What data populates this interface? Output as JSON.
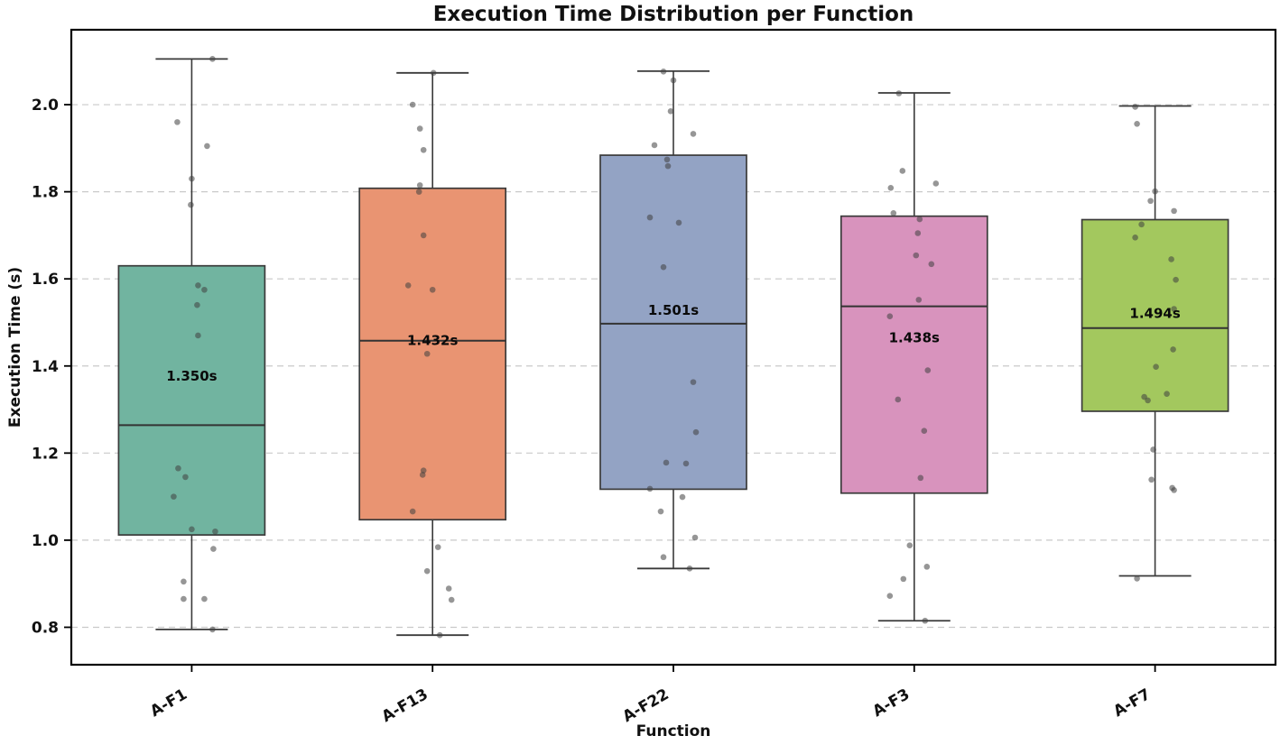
{
  "chart_data": {
    "type": "box",
    "title": "Execution Time Distribution per Function",
    "xlabel": "Function",
    "ylabel": "Execution Time (s)",
    "categories": [
      "A-F1",
      "A-F13",
      "A-F22",
      "A-F3",
      "A-F7"
    ],
    "ylim": [
      0.714,
      2.172
    ],
    "yticks": [
      0.8,
      1.0,
      1.2,
      1.4,
      1.6,
      1.8,
      2.0
    ],
    "ytick_labels": [
      "0.8",
      "1.0",
      "1.2",
      "1.4",
      "1.6",
      "1.8",
      "2.0"
    ],
    "grid": "horizontal-dashed",
    "legend": "none",
    "xtick_rotation_deg": 30,
    "colors": {
      "grid": "#c9c9c9",
      "box_edge": "#3a3a3a",
      "median_line": "#333333",
      "whisker": "#3a3a3a",
      "scatter": "#404040",
      "axes_border": "#000000",
      "background": "#ffffff"
    },
    "series": [
      {
        "name": "A-F1",
        "box_color": "#71b4a0",
        "whisker_low": 0.795,
        "q1": 1.012,
        "median": 1.264,
        "q3": 1.63,
        "whisker_high": 2.105,
        "mean": 1.35,
        "mean_label": "1.350s",
        "points": [
          [
            23,
            2.105
          ],
          [
            -16,
            1.96
          ],
          [
            17,
            1.905
          ],
          [
            0,
            1.83
          ],
          [
            -1,
            1.77
          ],
          [
            7,
            1.585
          ],
          [
            14,
            1.575
          ],
          [
            6,
            1.54
          ],
          [
            7,
            1.47
          ],
          [
            -15,
            1.165
          ],
          [
            -7,
            1.145
          ],
          [
            -20,
            1.1
          ],
          [
            0,
            1.025
          ],
          [
            26,
            1.02
          ],
          [
            24,
            0.98
          ],
          [
            -9,
            0.905
          ],
          [
            -9,
            0.865
          ],
          [
            14,
            0.865
          ],
          [
            23,
            0.795
          ]
        ]
      },
      {
        "name": "A-F13",
        "box_color": "#e99472",
        "whisker_low": 0.782,
        "q1": 1.047,
        "median": 1.458,
        "q3": 1.808,
        "whisker_high": 2.073,
        "mean": 1.432,
        "mean_label": "1.432s",
        "points": [
          [
            1,
            2.073
          ],
          [
            -22,
            2.0
          ],
          [
            -14,
            1.945
          ],
          [
            -10,
            1.896
          ],
          [
            -14,
            1.815
          ],
          [
            -15,
            1.8
          ],
          [
            -10,
            1.7
          ],
          [
            -27,
            1.585
          ],
          [
            0,
            1.575
          ],
          [
            -6,
            1.428
          ],
          [
            -10,
            1.16
          ],
          [
            -11,
            1.15
          ],
          [
            -22,
            1.066
          ],
          [
            6,
            0.984
          ],
          [
            -6,
            0.929
          ],
          [
            18,
            0.889
          ],
          [
            21,
            0.863
          ],
          [
            8,
            0.782
          ]
        ]
      },
      {
        "name": "A-F22",
        "box_color": "#93a3c4",
        "whisker_low": 0.935,
        "q1": 1.117,
        "median": 1.497,
        "q3": 1.884,
        "whisker_high": 2.077,
        "mean": 1.501,
        "mean_label": "1.501s",
        "points": [
          [
            -11,
            2.076
          ],
          [
            0,
            2.056
          ],
          [
            -3,
            1.985
          ],
          [
            22,
            1.933
          ],
          [
            -21,
            1.907
          ],
          [
            -7,
            1.874
          ],
          [
            -6,
            1.859
          ],
          [
            -26,
            1.741
          ],
          [
            6,
            1.729
          ],
          [
            -11,
            1.627
          ],
          [
            22,
            1.363
          ],
          [
            25,
            1.248
          ],
          [
            -8,
            1.178
          ],
          [
            14,
            1.176
          ],
          [
            -26,
            1.118
          ],
          [
            10,
            1.099
          ],
          [
            -14,
            1.066
          ],
          [
            24,
            1.006
          ],
          [
            -11,
            0.961
          ],
          [
            18,
            0.935
          ]
        ]
      },
      {
        "name": "A-F3",
        "box_color": "#d893bd",
        "whisker_low": 0.815,
        "q1": 1.108,
        "median": 1.537,
        "q3": 1.744,
        "whisker_high": 2.027,
        "mean": 1.438,
        "mean_label": "1.438s",
        "points": [
          [
            -17,
            2.026
          ],
          [
            -13,
            1.848
          ],
          [
            24,
            1.819
          ],
          [
            -26,
            1.809
          ],
          [
            -23,
            1.751
          ],
          [
            6,
            1.737
          ],
          [
            4,
            1.705
          ],
          [
            2,
            1.654
          ],
          [
            19,
            1.634
          ],
          [
            5,
            1.552
          ],
          [
            -27,
            1.514
          ],
          [
            15,
            1.39
          ],
          [
            -18,
            1.323
          ],
          [
            11,
            1.251
          ],
          [
            7,
            1.143
          ],
          [
            -5,
            0.988
          ],
          [
            14,
            0.939
          ],
          [
            -12,
            0.911
          ],
          [
            -27,
            0.872
          ],
          [
            12,
            0.815
          ]
        ]
      },
      {
        "name": "A-F7",
        "box_color": "#a3c85e",
        "whisker_low": 0.918,
        "q1": 1.296,
        "median": 1.487,
        "q3": 1.736,
        "whisker_high": 1.997,
        "mean": 1.494,
        "mean_label": "1.494s",
        "points": [
          [
            -22,
            1.995
          ],
          [
            -20,
            1.956
          ],
          [
            0,
            1.801
          ],
          [
            -5,
            1.779
          ],
          [
            21,
            1.756
          ],
          [
            -15,
            1.725
          ],
          [
            -22,
            1.695
          ],
          [
            18,
            1.645
          ],
          [
            23,
            1.598
          ],
          [
            21,
            1.531
          ],
          [
            20,
            1.438
          ],
          [
            1,
            1.398
          ],
          [
            13,
            1.336
          ],
          [
            -12,
            1.329
          ],
          [
            -8,
            1.321
          ],
          [
            -2,
            1.208
          ],
          [
            -4,
            1.139
          ],
          [
            19,
            1.12
          ],
          [
            21,
            1.115
          ],
          [
            -20,
            0.912
          ]
        ]
      }
    ]
  }
}
